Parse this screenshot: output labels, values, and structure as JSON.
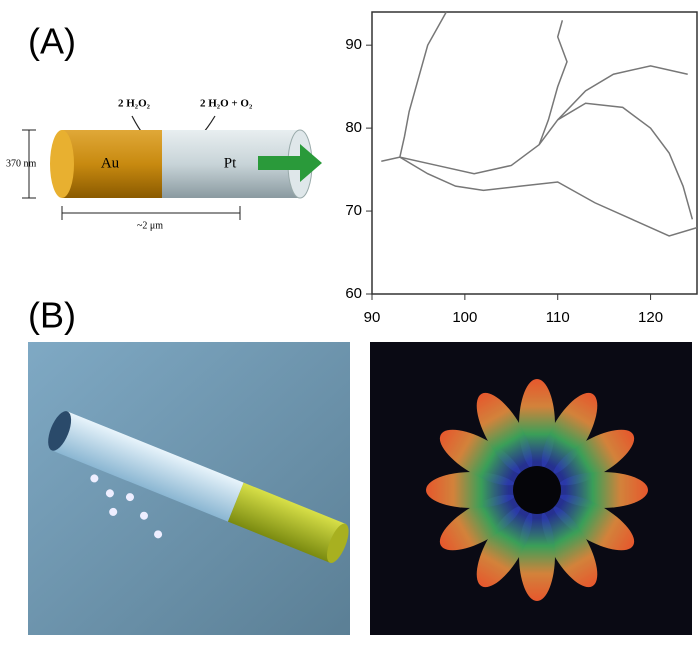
{
  "figure": {
    "panel_a_label": "(A)",
    "panel_b_label": "(B)",
    "diagram": {
      "reaction_in": "2 H₂O₂",
      "reaction_out": "2 H₂O + O₂",
      "au_label": "Au",
      "pt_label": "Pt",
      "diameter_label": "370 nm",
      "length_label": "~2 μm"
    }
  },
  "chart_data": {
    "type": "line",
    "series": [
      {
        "color": "#777777",
        "x": [
          91,
          93,
          97,
          101,
          105,
          108,
          109,
          110,
          111,
          110,
          110.5
        ],
        "values": [
          76,
          76.5,
          75.5,
          74.5,
          75.5,
          78,
          81,
          85,
          88,
          91,
          93
        ]
      },
      {
        "color": "#777777",
        "x": [
          98,
          96,
          95,
          94,
          93.5,
          93,
          96,
          99,
          102,
          106,
          110,
          114,
          118,
          122,
          125
        ],
        "values": [
          94,
          90,
          86,
          82,
          79,
          76.5,
          74.5,
          73,
          72.5,
          73,
          73.5,
          71,
          69,
          67,
          68
        ]
      },
      {
        "color": "#777777",
        "x": [
          108,
          110,
          113,
          116,
          120,
          124
        ],
        "values": [
          78,
          81,
          84.5,
          86.5,
          87.5,
          86.5
        ]
      },
      {
        "color": "#777777",
        "x": [
          110,
          113,
          117,
          120,
          122,
          123.5,
          124.5
        ],
        "values": [
          81,
          83,
          82.5,
          80,
          77,
          73,
          69
        ]
      }
    ],
    "xlim": [
      90,
      125
    ],
    "ylim": [
      60,
      94
    ],
    "xticks": [
      90,
      100,
      110,
      120
    ],
    "yticks": [
      60,
      70,
      80,
      90
    ]
  }
}
